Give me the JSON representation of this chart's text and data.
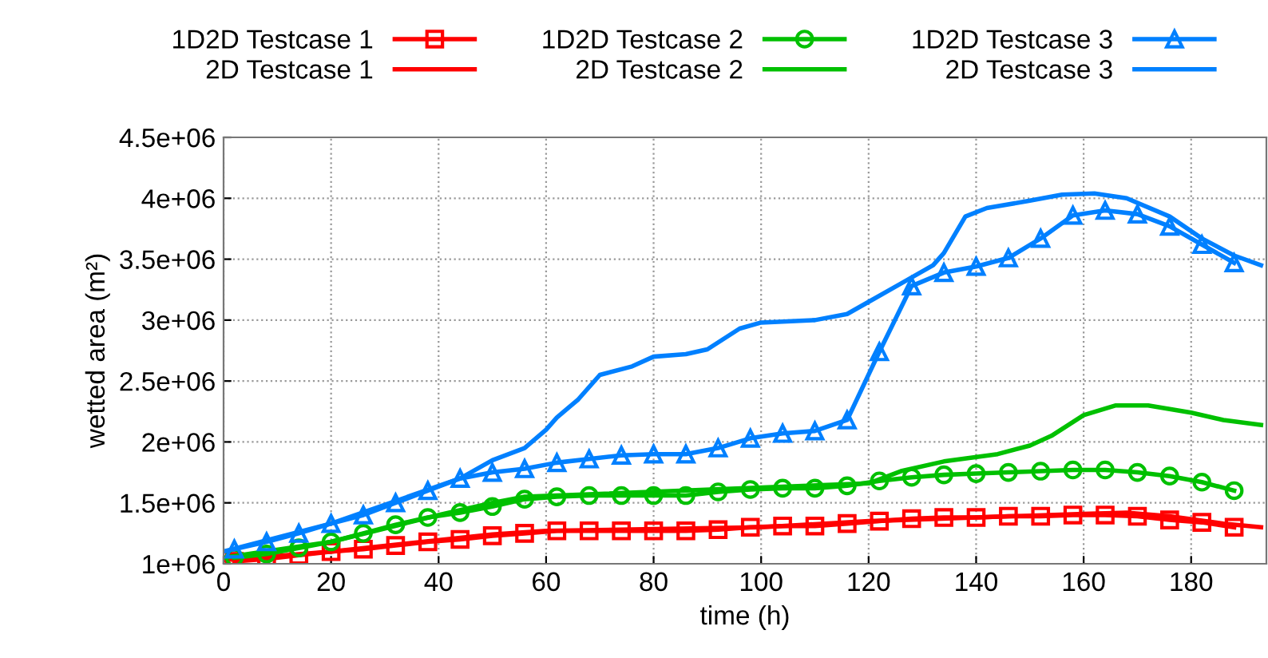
{
  "chart_data": {
    "type": "line",
    "xlabel": "time (h)",
    "ylabel": "wetted area (m²)",
    "xlim": [
      0,
      194
    ],
    "xticks": [
      0,
      20,
      40,
      60,
      80,
      100,
      120,
      140,
      160,
      180
    ],
    "ylim": [
      1000000,
      4500000
    ],
    "yticks": [
      {
        "value": 1000000,
        "label": "1e+06"
      },
      {
        "value": 1500000,
        "label": "1.5e+06"
      },
      {
        "value": 2000000,
        "label": "2e+06"
      },
      {
        "value": 2500000,
        "label": "2.5e+06"
      },
      {
        "value": 3000000,
        "label": "3e+06"
      },
      {
        "value": 3500000,
        "label": "3.5e+06"
      },
      {
        "value": 4000000,
        "label": "4e+06"
      },
      {
        "value": 4500000,
        "label": "4.5e+06"
      }
    ],
    "grid": true,
    "legend": "top",
    "line_style": "solid",
    "series": [
      {
        "name": "1D2D Testcase 1",
        "color": "#ff0000",
        "marker": "square",
        "x": [
          2,
          8,
          14,
          20,
          26,
          32,
          38,
          44,
          50,
          56,
          62,
          68,
          74,
          80,
          86,
          92,
          98,
          104,
          110,
          116,
          122,
          128,
          134,
          140,
          146,
          152,
          158,
          164,
          170,
          176,
          182,
          188
        ],
        "values": [
          1020000,
          1040000,
          1070000,
          1100000,
          1120000,
          1150000,
          1180000,
          1200000,
          1230000,
          1250000,
          1270000,
          1270000,
          1270000,
          1270000,
          1270000,
          1280000,
          1300000,
          1310000,
          1310000,
          1330000,
          1350000,
          1370000,
          1380000,
          1380000,
          1390000,
          1390000,
          1400000,
          1400000,
          1390000,
          1360000,
          1340000,
          1300000
        ]
      },
      {
        "name": "2D Testcase 1",
        "color": "#ff0000",
        "marker": "none",
        "x": [
          0,
          20,
          50,
          60,
          100,
          120,
          140,
          160,
          168,
          176,
          186,
          193
        ],
        "values": [
          1030000,
          1100000,
          1240000,
          1270000,
          1300000,
          1350000,
          1380000,
          1410000,
          1420000,
          1390000,
          1330000,
          1300000
        ]
      },
      {
        "name": "1D2D Testcase 2",
        "color": "#00c000",
        "marker": "circle",
        "x": [
          2,
          8,
          14,
          20,
          26,
          32,
          38,
          44,
          50,
          56,
          62,
          68,
          74,
          80,
          86,
          92,
          98,
          104,
          110,
          116,
          122,
          128,
          134,
          140,
          146,
          152,
          158,
          164,
          170,
          176,
          182,
          188
        ],
        "values": [
          1050000,
          1080000,
          1130000,
          1180000,
          1250000,
          1320000,
          1380000,
          1420000,
          1470000,
          1530000,
          1550000,
          1560000,
          1560000,
          1560000,
          1560000,
          1590000,
          1610000,
          1620000,
          1620000,
          1640000,
          1680000,
          1710000,
          1730000,
          1740000,
          1750000,
          1760000,
          1770000,
          1770000,
          1750000,
          1720000,
          1670000,
          1600000
        ]
      },
      {
        "name": "2D Testcase 2",
        "color": "#00c000",
        "marker": "none",
        "x": [
          0,
          20,
          40,
          50,
          56,
          120,
          126,
          134,
          144,
          150,
          154,
          160,
          166,
          172,
          180,
          186,
          193
        ],
        "values": [
          1050000,
          1180000,
          1400000,
          1500000,
          1550000,
          1660000,
          1760000,
          1840000,
          1900000,
          1970000,
          2050000,
          2220000,
          2300000,
          2300000,
          2240000,
          2180000,
          2140000
        ]
      },
      {
        "name": "1D2D Testcase 3",
        "color": "#0080ff",
        "marker": "triangle",
        "x": [
          2,
          8,
          14,
          20,
          26,
          32,
          38,
          44,
          50,
          56,
          62,
          68,
          74,
          80,
          86,
          92,
          98,
          104,
          110,
          116,
          122,
          128,
          134,
          140,
          146,
          152,
          158,
          164,
          170,
          176,
          182,
          188
        ],
        "values": [
          1120000,
          1180000,
          1250000,
          1330000,
          1400000,
          1500000,
          1600000,
          1700000,
          1750000,
          1780000,
          1830000,
          1860000,
          1890000,
          1900000,
          1900000,
          1950000,
          2030000,
          2070000,
          2090000,
          2180000,
          2740000,
          3280000,
          3390000,
          3440000,
          3510000,
          3670000,
          3860000,
          3900000,
          3870000,
          3770000,
          3620000,
          3470000
        ]
      },
      {
        "name": "2D Testcase 3",
        "color": "#0080ff",
        "marker": "none",
        "x": [
          0,
          20,
          44,
          50,
          56,
          60,
          62,
          66,
          70,
          76,
          80,
          86,
          90,
          96,
          100,
          110,
          116,
          120,
          126,
          132,
          134,
          138,
          142,
          150,
          156,
          162,
          168,
          176,
          182,
          188,
          193
        ],
        "values": [
          1100000,
          1330000,
          1700000,
          1850000,
          1950000,
          2100000,
          2200000,
          2350000,
          2550000,
          2620000,
          2700000,
          2720000,
          2760000,
          2930000,
          2980000,
          3000000,
          3050000,
          3150000,
          3300000,
          3450000,
          3550000,
          3850000,
          3920000,
          3980000,
          4030000,
          4040000,
          4000000,
          3850000,
          3670000,
          3530000,
          3450000
        ]
      }
    ]
  }
}
